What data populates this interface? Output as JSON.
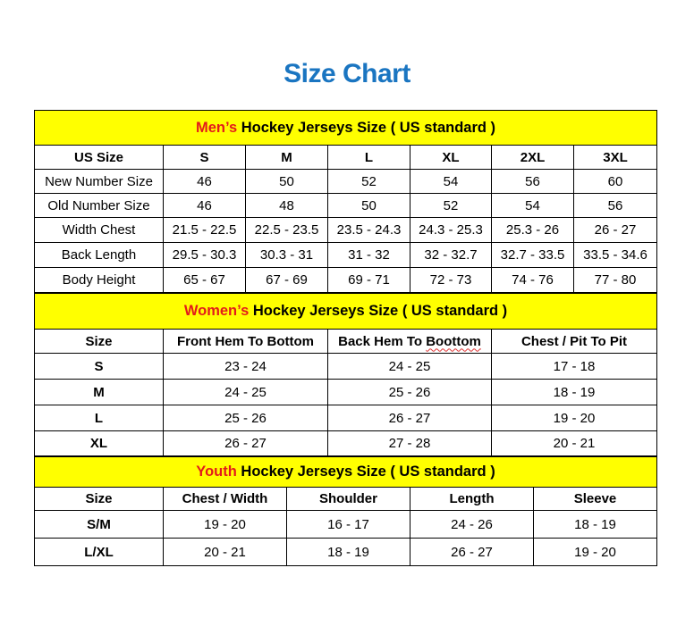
{
  "title": "Size Chart",
  "colors": {
    "title": "#1a75c1",
    "banner": "#ffff00",
    "accent": "#e31b1b"
  },
  "men": {
    "banner_accent": "Men’s",
    "banner_rest": " Hockey Jerseys Size ( US standard )",
    "headers": [
      "US Size",
      "S",
      "M",
      "L",
      "XL",
      "2XL",
      "3XL"
    ],
    "rows": [
      [
        "New Number Size",
        "46",
        "50",
        "52",
        "54",
        "56",
        "60"
      ],
      [
        "Old Number Size",
        "46",
        "48",
        "50",
        "52",
        "54",
        "56"
      ],
      [
        "Width Chest",
        "21.5 - 22.5",
        "22.5 - 23.5",
        "23.5 - 24.3",
        "24.3 - 25.3",
        "25.3 - 26",
        "26 - 27"
      ],
      [
        "Back Length",
        "29.5 - 30.3",
        "30.3 - 31",
        "31 - 32",
        "32 - 32.7",
        "32.7 - 33.5",
        "33.5 - 34.6"
      ],
      [
        "Body Height",
        "65 - 67",
        "67 - 69",
        "69 - 71",
        "72 - 73",
        "74 - 76",
        "77 - 80"
      ]
    ]
  },
  "women": {
    "banner_accent": "Women’s",
    "banner_rest": " Hockey Jerseys Size ( US standard )",
    "headers": [
      "Size",
      "Front Hem To Bottom",
      "Back Hem To Boottom",
      "Chest / Pit To Pit"
    ],
    "rows": [
      [
        "S",
        "23 - 24",
        "24 - 25",
        "17 - 18"
      ],
      [
        "M",
        "24 - 25",
        "25 - 26",
        "18 - 19"
      ],
      [
        "L",
        "25 - 26",
        "26 - 27",
        "19 - 20"
      ],
      [
        "XL",
        "26 - 27",
        "27 - 28",
        "20 - 21"
      ]
    ]
  },
  "youth": {
    "banner_accent": "Youth",
    "banner_rest": " Hockey Jerseys Size ( US standard )",
    "headers": [
      "Size",
      "Chest / Width",
      "Shoulder",
      "Length",
      "Sleeve"
    ],
    "rows": [
      [
        "S/M",
        "19 - 20",
        "16 - 17",
        "24 - 26",
        "18 - 19"
      ],
      [
        "L/XL",
        "20 - 21",
        "18 - 19",
        "26 - 27",
        "19 - 20"
      ]
    ]
  }
}
